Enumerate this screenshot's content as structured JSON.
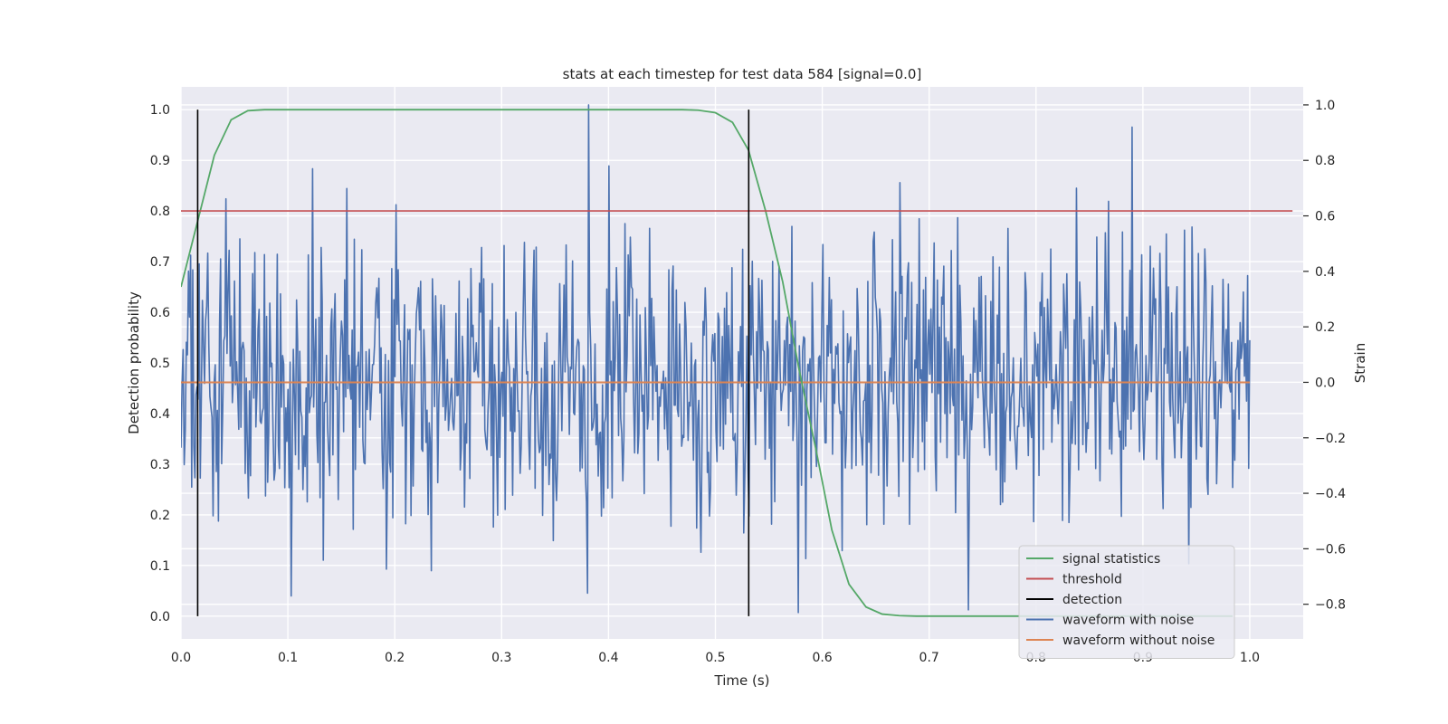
{
  "chart_data": {
    "type": "line",
    "title": "stats at each timestep for test data 584 [signal=0.0]",
    "xlabel": "Time (s)",
    "ylabel": "Detection probability",
    "y2label": "Strain",
    "xlim": [
      0.0,
      1.05
    ],
    "ylim": [
      -0.045,
      1.045
    ],
    "y2lim": [
      -0.925,
      1.065
    ],
    "xticks": [
      "0.0",
      "0.1",
      "0.2",
      "0.3",
      "0.4",
      "0.5",
      "0.6",
      "0.7",
      "0.8",
      "0.9",
      "1.0"
    ],
    "yticks": [
      "0.0",
      "0.1",
      "0.2",
      "0.3",
      "0.4",
      "0.5",
      "0.6",
      "0.7",
      "0.8",
      "0.9",
      "1.0"
    ],
    "y2ticks": [
      "−0.8",
      "−0.6",
      "−0.4",
      "−0.2",
      "0.0",
      "0.2",
      "0.4",
      "0.6",
      "0.8",
      "1.0"
    ],
    "grid": true,
    "legend_position": "lower right",
    "legend": [
      {
        "label": "signal statistics",
        "color": "#55a868"
      },
      {
        "label": "threshold",
        "color": "#c44e52"
      },
      {
        "label": "detection",
        "color": "#000000"
      },
      {
        "label": "waveform with noise",
        "color": "#4c72b0"
      },
      {
        "label": "waveform without noise",
        "color": "#dd8452"
      }
    ],
    "signal_statistics": {
      "x": [
        0.0,
        0.0156,
        0.0312,
        0.0469,
        0.0625,
        0.0781,
        0.1,
        0.2,
        0.3,
        0.4,
        0.469,
        0.484,
        0.5,
        0.516,
        0.531,
        0.547,
        0.563,
        0.578,
        0.594,
        0.609,
        0.625,
        0.641,
        0.656,
        0.672,
        0.688,
        0.75,
        0.85,
        0.95,
        0.984
      ],
      "y": [
        0.65,
        0.78,
        0.91,
        0.98,
        0.998,
        1.0,
        1.0,
        1.0,
        1.0,
        1.0,
        1.0,
        0.999,
        0.994,
        0.975,
        0.92,
        0.8,
        0.66,
        0.49,
        0.33,
        0.17,
        0.063,
        0.018,
        0.004,
        0.001,
        0.0,
        0.0,
        0.0,
        0.0,
        0.0
      ]
    },
    "threshold": {
      "y": 0.8,
      "x": [
        0.0,
        1.04
      ]
    },
    "detection": {
      "x": [
        0.0156,
        0.5312
      ],
      "y_range": [
        0.0,
        1.0
      ]
    },
    "waveform_without_noise": {
      "strain": 0.0,
      "x": [
        0.0,
        1.0
      ]
    },
    "waveform_with_noise": {
      "x_range": [
        0.0,
        1.0
      ],
      "n_points": 1000,
      "approx_std": 0.25,
      "notable_peaks": [
        {
          "x": 0.381,
          "strain": 1.0
        },
        {
          "x": 0.89,
          "strain": 0.92
        },
        {
          "x": 0.123,
          "strain": 0.77
        },
        {
          "x": 0.4,
          "strain": 0.78
        },
        {
          "x": 0.838,
          "strain": 0.7
        }
      ],
      "notable_troughs": [
        {
          "x": 0.578,
          "strain": -0.83
        },
        {
          "x": 0.737,
          "strain": -0.82
        },
        {
          "x": 0.103,
          "strain": -0.77
        },
        {
          "x": 0.38,
          "strain": -0.76
        }
      ]
    }
  }
}
